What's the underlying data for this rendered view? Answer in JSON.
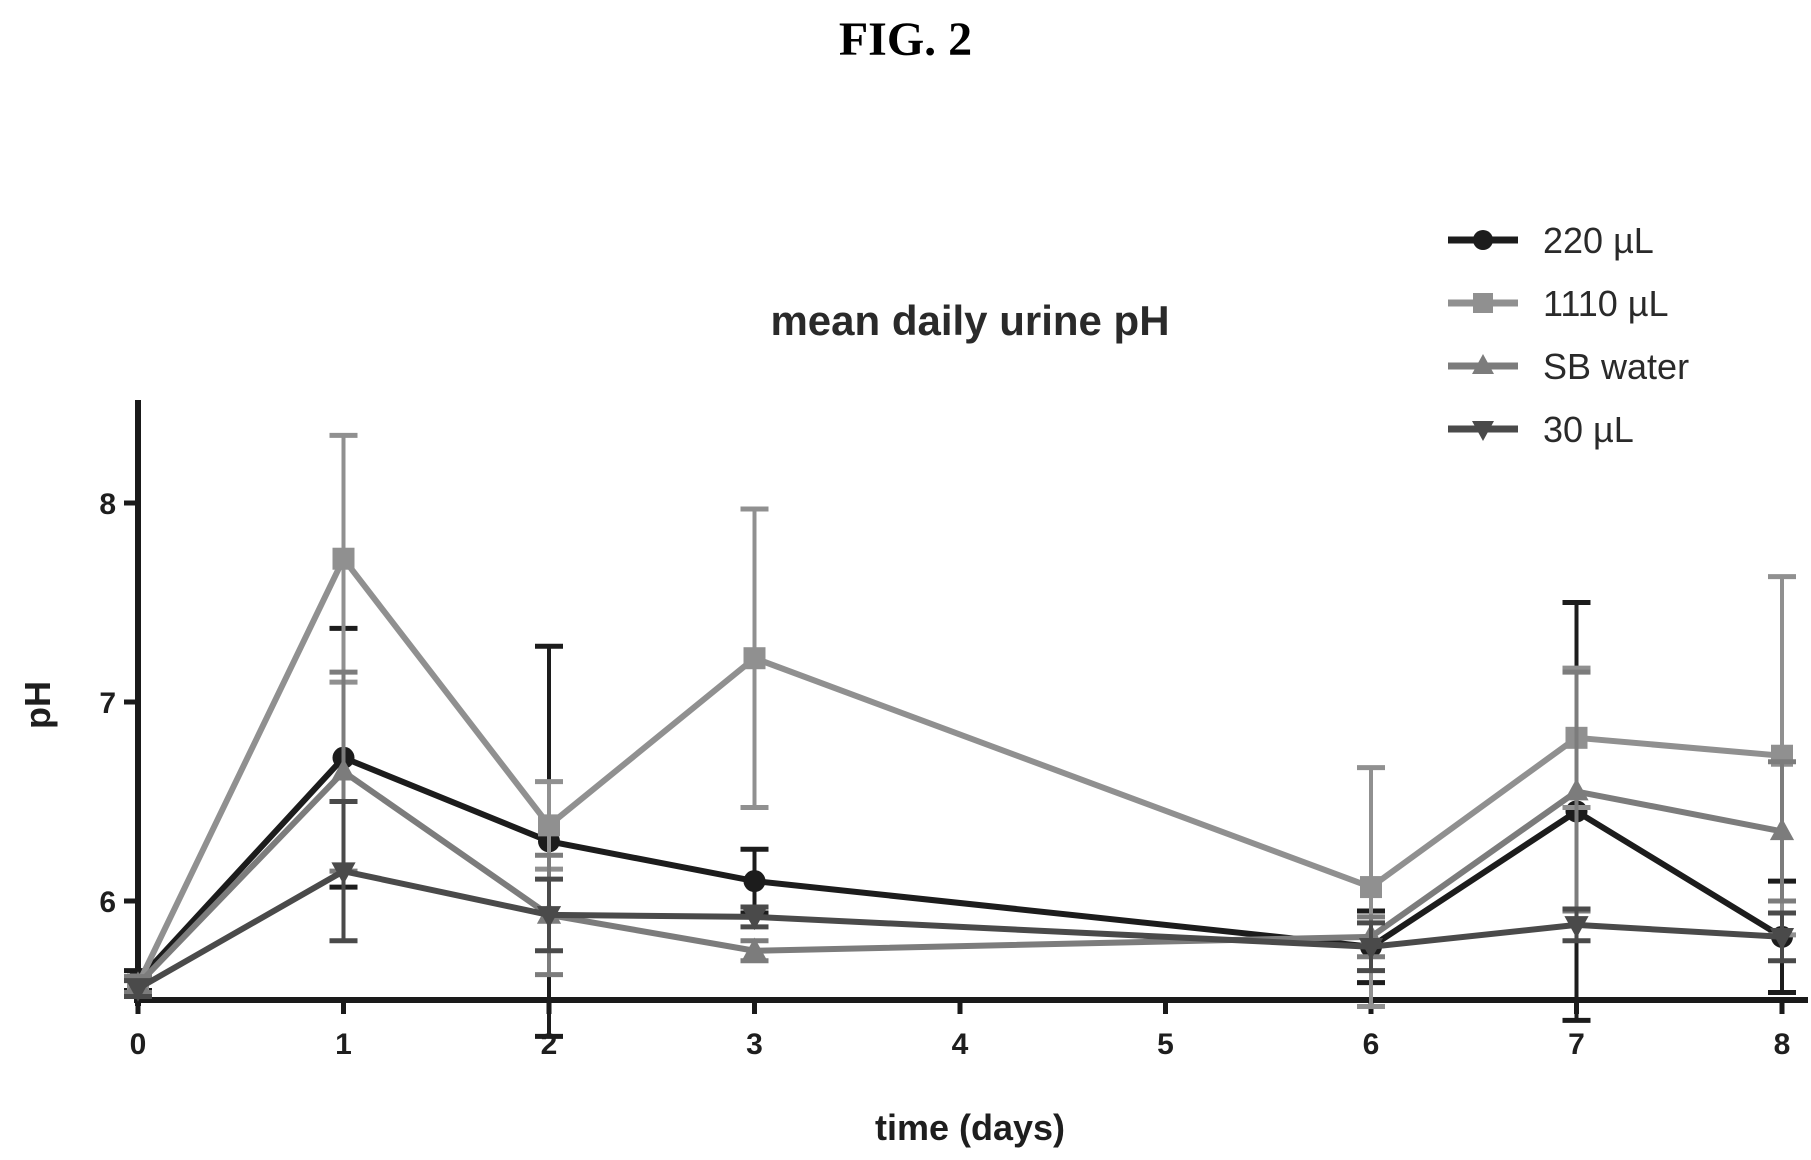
{
  "figure_label": "FIG. 2",
  "chart_data": {
    "type": "line",
    "title": "mean daily urine pH",
    "xlabel": "time (days)",
    "ylabel": "pH",
    "x": [
      0,
      1,
      2,
      3,
      6,
      7,
      8
    ],
    "x_ticks": [
      "0",
      "1",
      "2",
      "3",
      "4",
      "5",
      "6",
      "7",
      "8"
    ],
    "y_ticks": [
      "6",
      "7",
      "8"
    ],
    "xlim": [
      0,
      8
    ],
    "ylim": [
      5.5,
      8.5
    ],
    "grid": false,
    "legend_position": "top-right",
    "series": [
      {
        "name": "220 µL",
        "color": "#1c1c1c",
        "marker": "circle",
        "values": [
          5.6,
          6.72,
          6.3,
          6.1,
          5.77,
          6.45,
          5.82
        ],
        "error": [
          0.05,
          0.65,
          0.98,
          0.16,
          0.18,
          1.05,
          0.28
        ]
      },
      {
        "name": "1110 µL",
        "color": "#909090",
        "marker": "square",
        "values": [
          5.58,
          7.72,
          6.38,
          7.22,
          6.07,
          6.82,
          6.73
        ],
        "error": [
          0.04,
          0.62,
          0.22,
          0.75,
          0.6,
          0.35,
          0.9
        ]
      },
      {
        "name": "SB water",
        "color": "#7c7c7c",
        "marker": "triangle",
        "values": [
          5.58,
          6.65,
          5.93,
          5.75,
          5.82,
          6.55,
          6.35
        ],
        "error": [
          0.04,
          0.5,
          0.3,
          0.05,
          0.1,
          0.6,
          0.35
        ]
      },
      {
        "name": "30 µL",
        "color": "#4a4a4a",
        "marker": "triangle-down",
        "values": [
          5.56,
          6.15,
          5.93,
          5.92,
          5.77,
          5.88,
          5.82
        ],
        "error": [
          0.04,
          0.35,
          0.18,
          0.05,
          0.12,
          0.08,
          0.12
        ]
      }
    ]
  }
}
